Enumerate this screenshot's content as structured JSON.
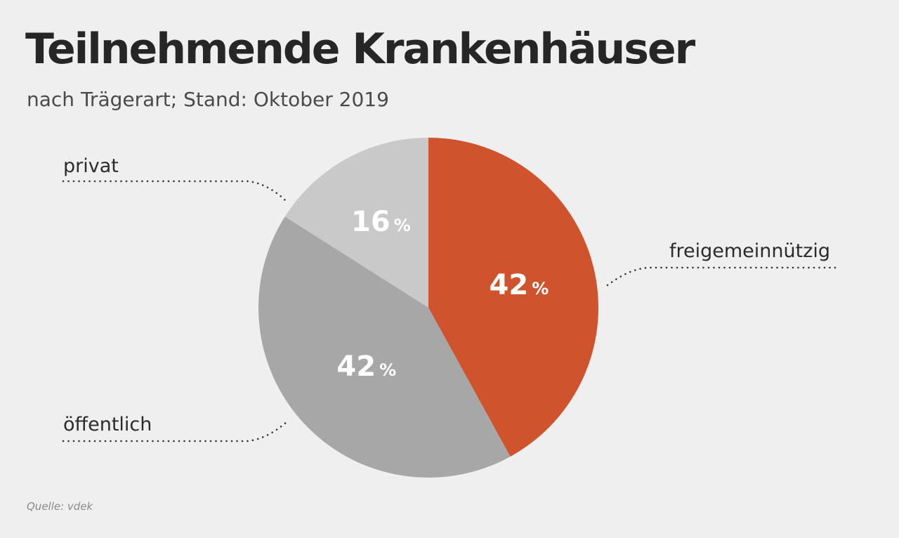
{
  "header": {
    "title": "Teilnehmende Krankenhäuser",
    "subtitle": "nach Trägerart; Stand: Oktober 2019"
  },
  "footer": {
    "source": "Quelle: vdek"
  },
  "chart_data": {
    "type": "pie",
    "title": "Teilnehmende Krankenhäuser",
    "subtitle": "nach Trägerart; Stand: Oktober 2019",
    "unit": "%",
    "slices": [
      {
        "label": "freigemeinnützig",
        "value": 42,
        "color": "#cf532c"
      },
      {
        "label": "öffentlich",
        "value": 42,
        "color": "#a6a7a6"
      },
      {
        "label": "privat",
        "value": 16,
        "color": "#c8c9c8"
      }
    ],
    "start_angle_deg": 0,
    "direction": "clockwise",
    "legend": "none (slices labelled directly)"
  },
  "colors": {
    "background": "#efefef",
    "accent": "#cf532c"
  }
}
